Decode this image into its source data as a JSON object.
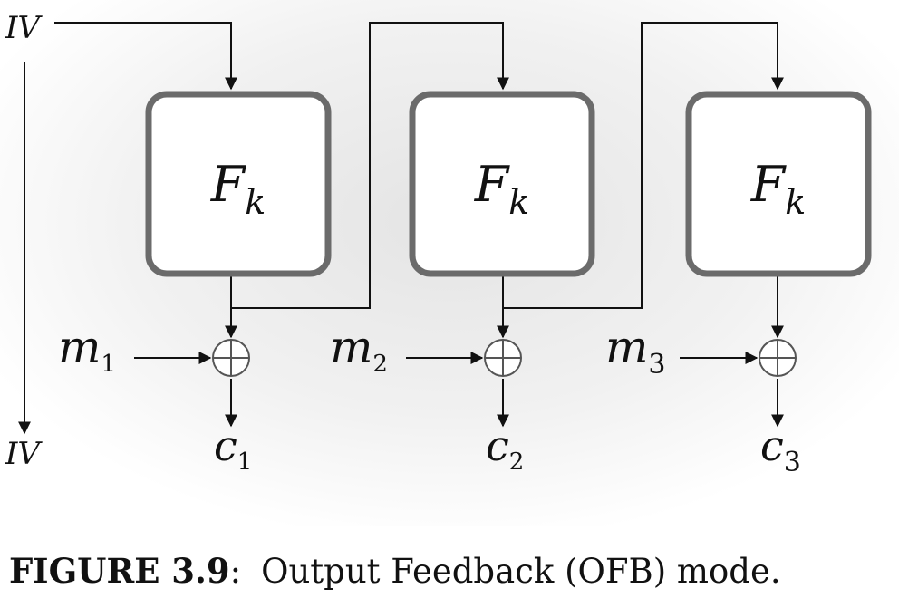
{
  "diagram": {
    "iv_top": "IV",
    "iv_bottom": "IV",
    "blocks": [
      {
        "func": "F",
        "sub": "k"
      },
      {
        "func": "F",
        "sub": "k"
      },
      {
        "func": "F",
        "sub": "k"
      }
    ],
    "messages": [
      {
        "base": "m",
        "sub": "1"
      },
      {
        "base": "m",
        "sub": "2"
      },
      {
        "base": "m",
        "sub": "3"
      }
    ],
    "ciphertexts": [
      {
        "base": "c",
        "sub": "1"
      },
      {
        "base": "c",
        "sub": "2"
      },
      {
        "base": "c",
        "sub": "3"
      }
    ],
    "colors": {
      "line": "#111111",
      "box_stroke": "#6b6b6b",
      "box_fill": "#ffffff",
      "xor_stroke": "#555555"
    }
  },
  "caption": {
    "label": "FIGURE 3.9",
    "punct": ":",
    "text": "Output Feedback (OFB) mode."
  }
}
